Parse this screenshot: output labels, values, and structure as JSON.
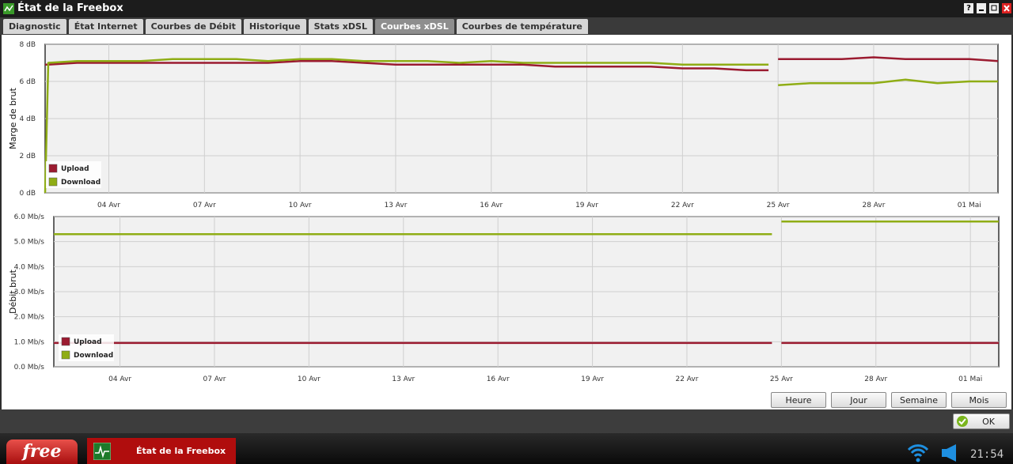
{
  "window": {
    "title": "État de la Freebox",
    "help": "?"
  },
  "tabs": [
    "Diagnostic",
    "État Internet",
    "Courbes de Débit",
    "Historique",
    "Stats xDSL",
    "Courbes xDSL",
    "Courbes de température"
  ],
  "active_tab": 5,
  "chart_data": [
    {
      "type": "line",
      "ylabel": "Marge de brut",
      "x": [
        2,
        2.1,
        3,
        4,
        5,
        6,
        7,
        8,
        9,
        10,
        11,
        12,
        13,
        14,
        15,
        16,
        17,
        18,
        19,
        20,
        21,
        22,
        23,
        24,
        24.7,
        24.85,
        25,
        26,
        27,
        28,
        29,
        30,
        31,
        31.9
      ],
      "series": [
        {
          "name": "Upload",
          "color": "#9b1b30",
          "values": [
            6.9,
            6.9,
            7.0,
            7.0,
            7.0,
            7.0,
            7.0,
            7.0,
            7.0,
            7.1,
            7.1,
            7.0,
            6.9,
            6.9,
            6.9,
            6.9,
            6.9,
            6.8,
            6.8,
            6.8,
            6.8,
            6.7,
            6.7,
            6.6,
            6.6,
            null,
            7.2,
            7.2,
            7.2,
            7.3,
            7.2,
            7.2,
            7.2,
            7.1
          ]
        },
        {
          "name": "Download",
          "color": "#8fad15",
          "values": [
            0,
            7.0,
            7.1,
            7.1,
            7.1,
            7.2,
            7.2,
            7.2,
            7.1,
            7.2,
            7.2,
            7.1,
            7.1,
            7.1,
            7.0,
            7.1,
            7.0,
            7.0,
            7.0,
            7.0,
            7.0,
            6.9,
            6.9,
            6.9,
            6.9,
            null,
            5.8,
            5.9,
            5.9,
            5.9,
            6.1,
            5.9,
            6.0,
            6.0
          ]
        }
      ],
      "xlim": [
        2.0,
        31.9
      ],
      "xticks": [
        {
          "value": 4,
          "label": "04 Avr"
        },
        {
          "value": 7,
          "label": "07 Avr"
        },
        {
          "value": 10,
          "label": "10 Avr"
        },
        {
          "value": 13,
          "label": "13 Avr"
        },
        {
          "value": 16,
          "label": "16 Avr"
        },
        {
          "value": 19,
          "label": "19 Avr"
        },
        {
          "value": 22,
          "label": "22 Avr"
        },
        {
          "value": 25,
          "label": "25 Avr"
        },
        {
          "value": 28,
          "label": "28 Avr"
        },
        {
          "value": 31,
          "label": "01 Mai"
        }
      ],
      "ylim": [
        0,
        8
      ],
      "yticks": [
        {
          "value": 0,
          "label": "0 dB"
        },
        {
          "value": 2,
          "label": "2 dB"
        },
        {
          "value": 4,
          "label": "4 dB"
        },
        {
          "value": 6,
          "label": "6 dB"
        },
        {
          "value": 8,
          "label": "8 dB"
        }
      ],
      "grid": true,
      "legend": "lower left"
    },
    {
      "type": "line",
      "ylabel": "Débit brut",
      "x": [
        1.9,
        24.7,
        24.85,
        25.0,
        31.9
      ],
      "series": [
        {
          "name": "Upload",
          "color": "#9b1b30",
          "values": [
            0.95,
            0.95,
            null,
            0.95,
            0.95
          ]
        },
        {
          "name": "Download",
          "color": "#8fad15",
          "values": [
            5.3,
            5.3,
            null,
            5.8,
            5.8
          ]
        }
      ],
      "xlim": [
        1.9,
        31.9
      ],
      "xticks": [
        {
          "value": 4,
          "label": "04 Avr"
        },
        {
          "value": 7,
          "label": "07 Avr"
        },
        {
          "value": 10,
          "label": "10 Avr"
        },
        {
          "value": 13,
          "label": "13 Avr"
        },
        {
          "value": 16,
          "label": "16 Avr"
        },
        {
          "value": 19,
          "label": "19 Avr"
        },
        {
          "value": 22,
          "label": "22 Avr"
        },
        {
          "value": 25,
          "label": "25 Avr"
        },
        {
          "value": 28,
          "label": "28 Avr"
        },
        {
          "value": 31,
          "label": "01 Mai"
        }
      ],
      "ylim": [
        0,
        6
      ],
      "yticks": [
        {
          "value": 0,
          "label": "0.0 Mb/s"
        },
        {
          "value": 1,
          "label": "1.0 Mb/s"
        },
        {
          "value": 2,
          "label": "2.0 Mb/s"
        },
        {
          "value": 3,
          "label": "3.0 Mb/s"
        },
        {
          "value": 4,
          "label": "4.0 Mb/s"
        },
        {
          "value": 5,
          "label": "5.0 Mb/s"
        },
        {
          "value": 6,
          "label": "6.0 Mb/s"
        }
      ],
      "grid": true,
      "legend": "lower left"
    }
  ],
  "buttons": [
    "Heure",
    "Jour",
    "Semaine",
    "Mois"
  ],
  "ok": "OK",
  "taskbar": {
    "start": "free",
    "task": "État de la Freebox",
    "clock": "21:54"
  }
}
